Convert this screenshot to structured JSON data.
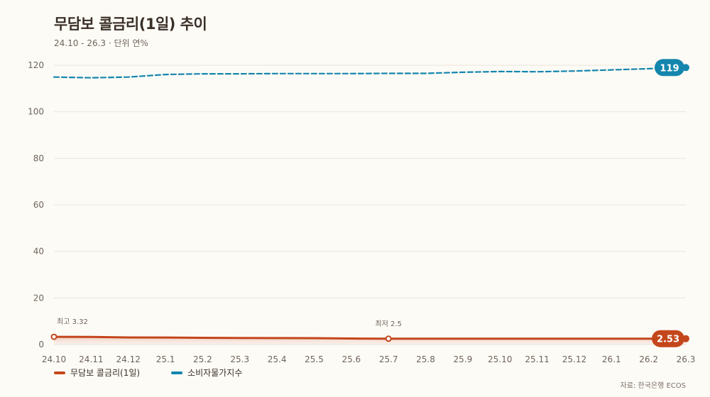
{
  "header": {
    "title": "무담보 콜금리(1일) 추이",
    "subtitle": "24.10 - 26.3 · 단위 연%"
  },
  "source": "자료: 한국은행 ECOS",
  "colors": {
    "call_rate": "#c4461b",
    "cpi": "#1486ad",
    "grid": "#ece6dc",
    "axis_text": "#6e645a"
  },
  "chart_data": {
    "type": "line",
    "title": "무담보 콜금리(1일) 추이",
    "x": [
      "24.10",
      "24.11",
      "24.12",
      "25.1",
      "25.2",
      "25.3",
      "25.4",
      "25.5",
      "25.6",
      "25.7",
      "25.8",
      "25.9",
      "25.10",
      "25.11",
      "25.12",
      "26.1",
      "26.2",
      "26.3"
    ],
    "ylim": [
      0,
      120
    ],
    "yticks": [
      0,
      20,
      40,
      60,
      80,
      100,
      120
    ],
    "grid": true,
    "legend_position": "bottom-left",
    "series": [
      {
        "name": "무담보 콜금리(1일)",
        "color": "#c4461b",
        "style": "solid-area",
        "values": [
          3.32,
          3.25,
          3.05,
          3.0,
          2.9,
          2.8,
          2.78,
          2.75,
          2.6,
          2.5,
          2.5,
          2.5,
          2.5,
          2.5,
          2.52,
          2.52,
          2.53,
          2.53
        ],
        "end_label": "2.53"
      },
      {
        "name": "소비자물가지수",
        "color": "#1486ad",
        "style": "dashed",
        "values": [
          114.9,
          114.6,
          114.9,
          116.0,
          116.3,
          116.3,
          116.4,
          116.4,
          116.4,
          116.5,
          116.5,
          117.0,
          117.3,
          117.2,
          117.5,
          118.0,
          118.5,
          119.0
        ],
        "end_label": "119"
      }
    ],
    "annotations": [
      {
        "series": 0,
        "index": 0,
        "text": "최고 3.32"
      },
      {
        "series": 0,
        "index": 9,
        "text": "최저 2.5"
      }
    ]
  }
}
